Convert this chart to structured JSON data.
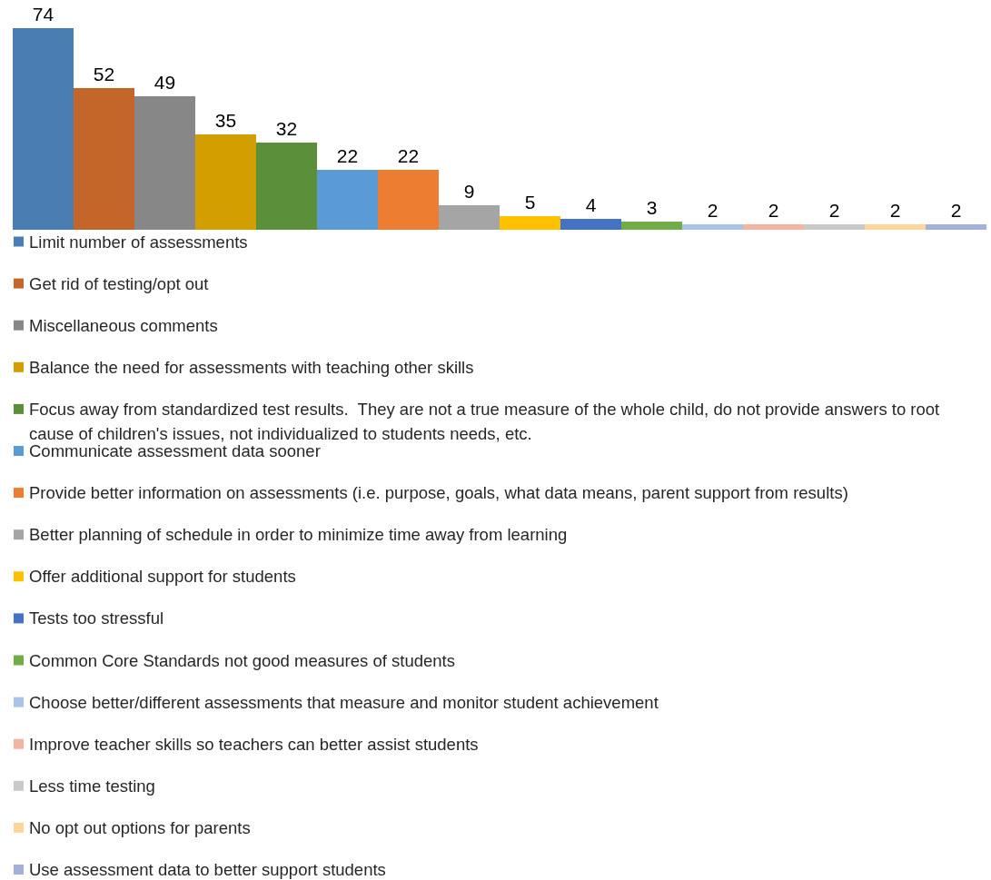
{
  "chart_data": {
    "type": "bar",
    "categories": [
      null
    ],
    "series": [
      {
        "name": "Limit number of assessments",
        "color": "#4a7db1",
        "values": [
          74
        ]
      },
      {
        "name": "Get rid of testing/opt out",
        "color": "#c4652a",
        "values": [
          52
        ]
      },
      {
        "name": "Miscellaneous comments",
        "color": "#878787",
        "values": [
          49
        ]
      },
      {
        "name": "Balance the need for assessments with teaching other skills",
        "color": "#d39e00",
        "values": [
          35
        ]
      },
      {
        "name": "Focus away from standardized test results.  They are not a true measure of the whole child, do not provide answers to root cause of children's issues, not individualized to students needs, etc.",
        "color": "#5b8f3a",
        "values": [
          32
        ]
      },
      {
        "name": "Communicate assessment data sooner",
        "color": "#5b9bd5",
        "values": [
          22
        ]
      },
      {
        "name": "Provide better information on assessments (i.e. purpose, goals, what data means, parent support from results)",
        "color": "#ed7d31",
        "values": [
          22
        ]
      },
      {
        "name": "Better planning of schedule in order to minimize time away from learning",
        "color": "#a5a5a5",
        "values": [
          9
        ]
      },
      {
        "name": "Offer additional support for students",
        "color": "#ffc000",
        "values": [
          5
        ]
      },
      {
        "name": "Tests too stressful",
        "color": "#4472c4",
        "values": [
          4
        ]
      },
      {
        "name": "Common Core Standards not good measures of students",
        "color": "#70ad47",
        "values": [
          3
        ]
      },
      {
        "name": "Choose better/different assessments that measure and monitor student achievement",
        "color": "#a9c4e6",
        "values": [
          2
        ]
      },
      {
        "name": "Improve teacher skills so teachers can better assist students",
        "color": "#f3b4a2",
        "values": [
          2
        ]
      },
      {
        "name": "Less time testing",
        "color": "#c9c9c9",
        "values": [
          2
        ]
      },
      {
        "name": "No opt out options for parents",
        "color": "#fed69a",
        "values": [
          2
        ]
      },
      {
        "name": "Use assessment data to better support students",
        "color": "#a3b1d9",
        "values": [
          2
        ]
      }
    ],
    "data_labels": true,
    "legend": "bottom",
    "tick_labels": false
  }
}
